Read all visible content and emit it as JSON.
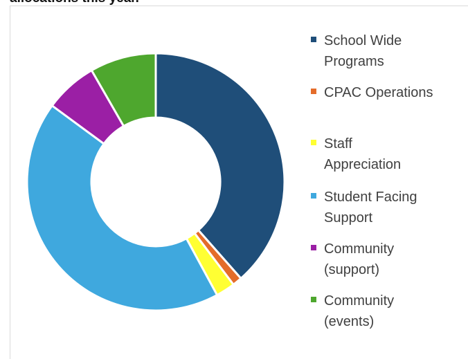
{
  "page": {
    "title": "allocations this year."
  },
  "chart_data": {
    "type": "pie",
    "donut": true,
    "categories": [
      "School Wide Programs",
      "CPAC Operations",
      "Staff Appreciation",
      "Student Facing Support",
      "Community (support)",
      "Community (events)"
    ],
    "values": [
      38.5,
      1.2,
      2.4,
      43.0,
      6.6,
      8.3
    ],
    "colors": [
      "#1f4e79",
      "#e46c2a",
      "#ffff33",
      "#3fa8de",
      "#9b1fa5",
      "#4ea72e"
    ],
    "legend_position": "right"
  },
  "legend": {
    "items": [
      {
        "label": "School Wide\nPrograms",
        "color": "#1f4e79",
        "icon": "square-swatch"
      },
      {
        "label": "CPAC Operations",
        "color": "#e46c2a",
        "icon": "square-swatch"
      },
      {
        "label": "Staff\nAppreciation",
        "color": "#ffff33",
        "icon": "square-swatch"
      },
      {
        "label": "Student Facing\nSupport",
        "color": "#3fa8de",
        "icon": "square-swatch"
      },
      {
        "label": "Community\n(support)",
        "color": "#9b1fa5",
        "icon": "square-swatch"
      },
      {
        "label": "Community\n(events)",
        "color": "#4ea72e",
        "icon": "square-swatch"
      }
    ]
  }
}
